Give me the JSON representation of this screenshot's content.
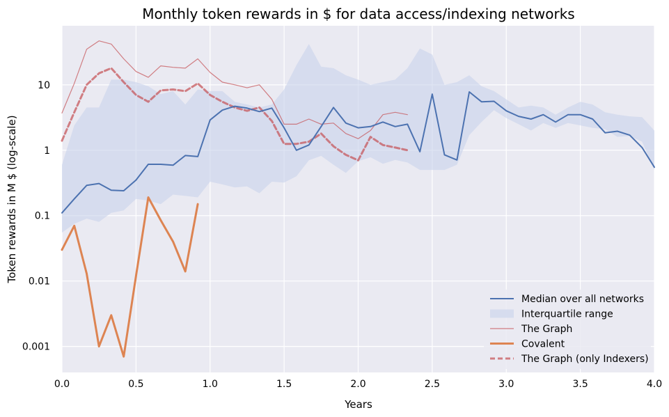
{
  "chart_data": {
    "type": "line",
    "title": "Monthly token rewards in $ for data access/indexing networks",
    "xlabel": "Years",
    "ylabel": "Token rewards in M $ (log-scale)",
    "xlim": [
      0,
      4
    ],
    "ylim": [
      0.0004,
      80
    ],
    "y_scale": "log",
    "grid": true,
    "legend_position": "lower-right",
    "x_ticks": [
      0,
      0.5,
      1,
      1.5,
      2,
      2.5,
      3,
      3.5,
      4
    ],
    "x_tick_labels": [
      "0.0",
      "0.5",
      "1.0",
      "1.5",
      "2.0",
      "2.5",
      "3.0",
      "3.5",
      "4.0"
    ],
    "y_ticks": [
      0.001,
      0.01,
      0.1,
      1,
      10
    ],
    "y_tick_labels": [
      "0.001",
      "0.01",
      "0.1",
      "1",
      "10"
    ],
    "colors": {
      "background": "#eaeaf2",
      "median": "#4c72b0",
      "band": "#c8d2eb",
      "graph": "#c44e52",
      "covalent": "#dd8452"
    },
    "series": [
      {
        "name": "Median over all networks",
        "style": "solid",
        "color": "#4c72b0",
        "x": [
          0,
          0.083,
          0.167,
          0.25,
          0.333,
          0.417,
          0.5,
          0.583,
          0.667,
          0.75,
          0.833,
          0.917,
          1.0,
          1.083,
          1.167,
          1.25,
          1.333,
          1.417,
          1.5,
          1.583,
          1.667,
          1.75,
          1.833,
          1.917,
          2.0,
          2.083,
          2.167,
          2.25,
          2.333,
          2.417,
          2.5,
          2.583,
          2.667,
          2.75,
          2.833,
          2.917,
          3.0,
          3.083,
          3.167,
          3.25,
          3.333,
          3.417,
          3.5,
          3.583,
          3.667,
          3.75,
          3.833,
          3.917,
          4.0
        ],
        "y": [
          0.11,
          0.18,
          0.29,
          0.31,
          0.245,
          0.24,
          0.35,
          0.61,
          0.61,
          0.59,
          0.83,
          0.8,
          2.9,
          4.1,
          4.7,
          4.4,
          3.9,
          4.4,
          2.2,
          1.0,
          1.2,
          2.3,
          4.5,
          2.6,
          2.2,
          2.3,
          2.7,
          2.3,
          2.5,
          0.95,
          7.2,
          0.85,
          0.71,
          7.8,
          5.5,
          5.6,
          4.0,
          3.3,
          3.0,
          3.5,
          2.7,
          3.5,
          3.5,
          3.0,
          1.85,
          1.95,
          1.7,
          1.1,
          0.55
        ]
      },
      {
        "name": "Interquartile range",
        "style": "band",
        "color": "#c8d2eb",
        "x": [
          0,
          0.083,
          0.167,
          0.25,
          0.333,
          0.417,
          0.5,
          0.583,
          0.667,
          0.75,
          0.833,
          0.917,
          1.0,
          1.083,
          1.167,
          1.25,
          1.333,
          1.417,
          1.5,
          1.583,
          1.667,
          1.75,
          1.833,
          1.917,
          2.0,
          2.083,
          2.167,
          2.25,
          2.333,
          2.417,
          2.5,
          2.583,
          2.667,
          2.75,
          2.833,
          2.917,
          3.0,
          3.083,
          3.167,
          3.25,
          3.333,
          3.417,
          3.5,
          3.583,
          3.667,
          3.75,
          3.833,
          3.917,
          4.0
        ],
        "lower": [
          0.055,
          0.075,
          0.09,
          0.08,
          0.11,
          0.12,
          0.18,
          0.17,
          0.15,
          0.21,
          0.2,
          0.19,
          0.33,
          0.3,
          0.27,
          0.28,
          0.22,
          0.33,
          0.32,
          0.4,
          0.7,
          0.82,
          0.6,
          0.45,
          0.68,
          0.78,
          0.62,
          0.71,
          0.65,
          0.5,
          0.5,
          0.5,
          0.6,
          1.7,
          2.7,
          4.1,
          3.1,
          2.5,
          2.0,
          2.6,
          2.2,
          2.6,
          2.4,
          2.2,
          2.1,
          1.6,
          1.65,
          1.35,
          0.5
        ],
        "upper": [
          0.6,
          2.4,
          4.5,
          4.5,
          12.0,
          12.0,
          11.0,
          9.5,
          7.2,
          8.0,
          5.0,
          8.5,
          8.0,
          8.0,
          5.5,
          5.0,
          4.5,
          5.0,
          8.5,
          20.0,
          42.0,
          19.0,
          18.0,
          14.0,
          12.0,
          10.0,
          11.0,
          12.0,
          18.0,
          36.0,
          29.0,
          10.0,
          11.0,
          14.0,
          9.5,
          8.0,
          6.0,
          4.5,
          4.8,
          4.5,
          3.5,
          4.5,
          5.5,
          5.0,
          3.8,
          3.5,
          3.3,
          3.2,
          2.0
        ]
      },
      {
        "name": "The Graph",
        "style": "thin",
        "color": "#c44e52",
        "x": [
          0,
          0.083,
          0.167,
          0.25,
          0.333,
          0.417,
          0.5,
          0.583,
          0.667,
          0.75,
          0.833,
          0.917,
          1.0,
          1.083,
          1.167,
          1.25,
          1.333,
          1.417,
          1.5,
          1.583,
          1.667,
          1.75,
          1.833,
          1.917,
          2.0,
          2.083,
          2.167,
          2.25,
          2.333
        ],
        "y": [
          3.7,
          10.5,
          35.0,
          47.0,
          42.0,
          25.0,
          16.0,
          13.0,
          19.5,
          18.5,
          18.0,
          25.0,
          15.5,
          11.0,
          10.0,
          9.0,
          10.0,
          6.0,
          2.5,
          2.5,
          3.0,
          2.5,
          2.6,
          1.8,
          1.5,
          2.0,
          3.5,
          3.8,
          3.5
        ]
      },
      {
        "name": "Covalent",
        "style": "thick",
        "color": "#dd8452",
        "x": [
          0,
          0.083,
          0.167,
          0.25,
          0.333,
          0.417,
          0.5,
          0.583,
          0.667,
          0.75,
          0.833,
          0.917
        ],
        "y": [
          0.03,
          0.07,
          0.013,
          0.001,
          0.003,
          0.0007,
          0.012,
          0.19,
          0.085,
          0.04,
          0.014,
          0.15
        ]
      },
      {
        "name": "The Graph (only Indexers)",
        "style": "dashed",
        "color": "#c44e52",
        "x": [
          0,
          0.083,
          0.167,
          0.25,
          0.333,
          0.417,
          0.5,
          0.583,
          0.667,
          0.75,
          0.833,
          0.917,
          1.0,
          1.083,
          1.167,
          1.25,
          1.333,
          1.417,
          1.5,
          1.583,
          1.667,
          1.75,
          1.833,
          1.917,
          2.0,
          2.083,
          2.167,
          2.25,
          2.333
        ],
        "y": [
          1.4,
          3.8,
          10.0,
          15.0,
          18.0,
          11.0,
          7.0,
          5.5,
          8.2,
          8.5,
          8.0,
          10.5,
          7.0,
          5.5,
          4.5,
          4.0,
          4.5,
          2.8,
          1.25,
          1.25,
          1.35,
          1.8,
          1.15,
          0.85,
          0.7,
          1.6,
          1.2,
          1.1,
          1.0
        ]
      }
    ]
  }
}
